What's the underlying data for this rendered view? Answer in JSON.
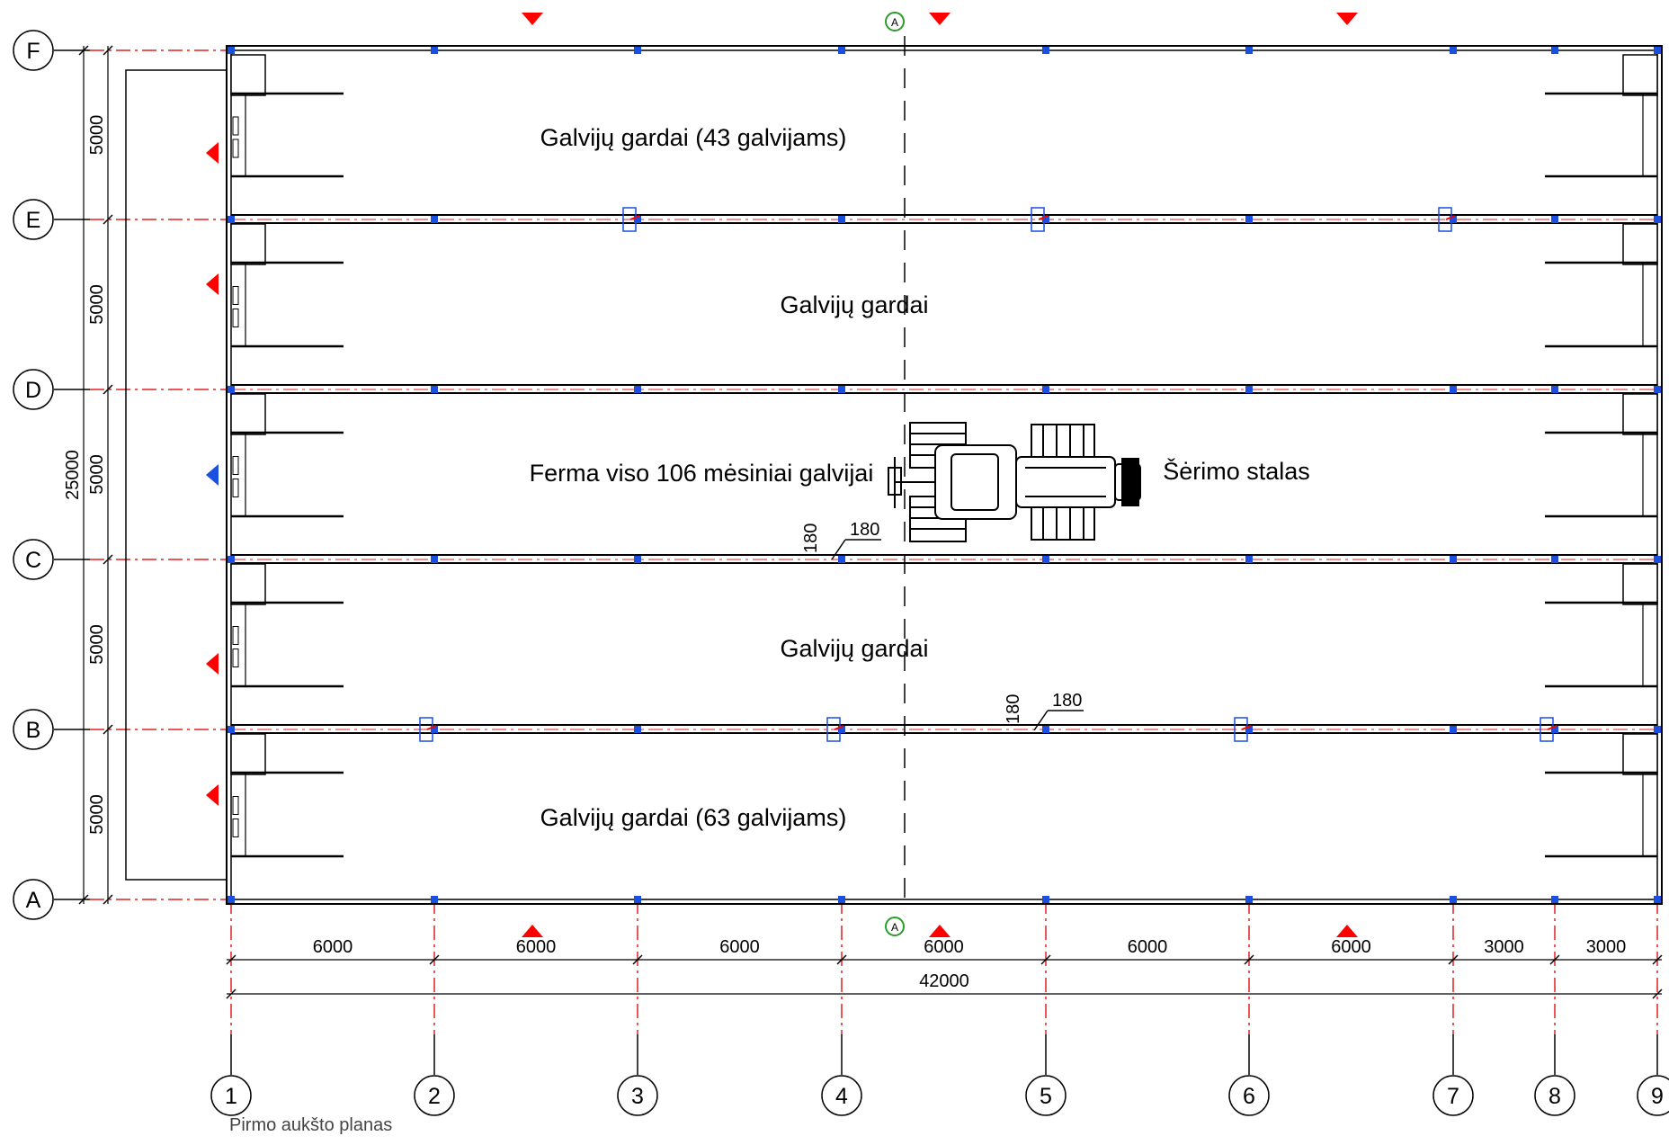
{
  "drawing": {
    "caption": "Pirmo aukšto planas",
    "section_mark": "A",
    "colors": {
      "grid_line": "#e02020",
      "column": "#1a4fe0",
      "wall": "#000000",
      "marker_red": "#ff0000",
      "marker_blue": "#1a4fe0",
      "section": "#2a9d2a"
    }
  },
  "axes": {
    "rows": [
      "F",
      "E",
      "D",
      "C",
      "B",
      "A"
    ],
    "columns": [
      "1",
      "2",
      "3",
      "4",
      "5",
      "6",
      "7",
      "8",
      "9"
    ]
  },
  "dimensions": {
    "horizontal": [
      "6000",
      "6000",
      "6000",
      "6000",
      "6000",
      "6000",
      "3000",
      "3000"
    ],
    "horizontal_total": "42000",
    "vertical": [
      "5000",
      "5000",
      "5000",
      "5000",
      "5000"
    ],
    "vertical_total": "25000",
    "wall_1": "180",
    "wall_2": "180",
    "wall_3": "180",
    "wall_4": "180"
  },
  "rooms": {
    "row_ef": "Galvijų gardai (43 galvijams)",
    "row_de": "Galvijų gardai",
    "row_cd": "Ferma viso 106 mėsiniai galvijai",
    "feeding": "Šėrimo stalas",
    "row_bc": "Galvijų gardai",
    "row_ab": "Galvijų gardai (63 galvijams)"
  },
  "objects": {
    "vehicle": "tractor-icon"
  }
}
